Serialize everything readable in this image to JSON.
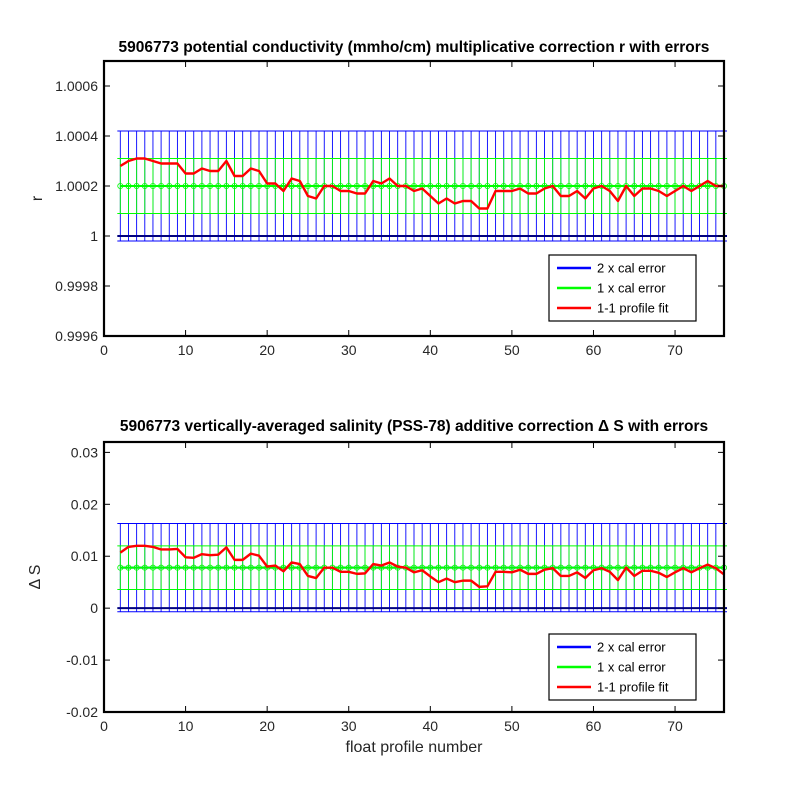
{
  "chart_data": [
    {
      "type": "line",
      "title": "5906773 potential conductivity (mmho/cm) multiplicative correction r with errors",
      "xlabel": "",
      "ylabel": "r",
      "xlim": [
        0,
        76
      ],
      "ylim": [
        0.9996,
        1.0007
      ],
      "xticks": [
        0,
        10,
        20,
        30,
        40,
        50,
        60,
        70
      ],
      "xtick_labels": [
        "0",
        "10",
        "20",
        "30",
        "40",
        "50",
        "60",
        "70"
      ],
      "yticks": [
        0.9996,
        0.9998,
        1.0,
        1.0002,
        1.0004,
        1.0006
      ],
      "ytick_labels": [
        "0.9996",
        "0.9998",
        "1",
        "1.0002",
        "1.0004",
        "1.0006"
      ],
      "grid": false,
      "legend_position": "bottom-right",
      "colors": {
        "two_cal": "#0000ff",
        "one_cal": "#00ff00",
        "profile_fit": "#ff0000"
      },
      "series": [
        {
          "name": "2 x cal error",
          "center": 1.0002,
          "half_width": 0.00022,
          "x_start": 2,
          "x_end": 76
        },
        {
          "name": "1 x cal error",
          "center": 1.0002,
          "half_width": 0.00011,
          "x_start": 2,
          "x_end": 76
        },
        {
          "name": "1-1 profile fit",
          "x": [
            2,
            3,
            4,
            5,
            6,
            7,
            8,
            9,
            10,
            11,
            12,
            13,
            14,
            15,
            16,
            17,
            18,
            19,
            20,
            21,
            22,
            23,
            24,
            25,
            26,
            27,
            28,
            29,
            30,
            31,
            32,
            33,
            34,
            35,
            36,
            37,
            38,
            39,
            40,
            41,
            42,
            43,
            44,
            45,
            46,
            47,
            48,
            49,
            50,
            51,
            52,
            53,
            54,
            55,
            56,
            57,
            58,
            59,
            60,
            61,
            62,
            63,
            64,
            65,
            66,
            67,
            68,
            69,
            70,
            71,
            72,
            73,
            74,
            75,
            76
          ],
          "values": [
            1.00028,
            1.0003,
            1.00031,
            1.00031,
            1.0003,
            1.00029,
            1.00029,
            1.00029,
            1.00025,
            1.00025,
            1.00027,
            1.00026,
            1.00026,
            1.0003,
            1.00024,
            1.00024,
            1.00027,
            1.00026,
            1.00021,
            1.00021,
            1.00018,
            1.00023,
            1.00022,
            1.00016,
            1.00015,
            1.0002,
            1.0002,
            1.00018,
            1.00018,
            1.00017,
            1.00017,
            1.00022,
            1.00021,
            1.00023,
            1.0002,
            1.0002,
            1.00018,
            1.00019,
            1.00016,
            1.00013,
            1.00015,
            1.00013,
            1.00014,
            1.00014,
            1.00011,
            1.00011,
            1.00018,
            1.00018,
            1.00018,
            1.00019,
            1.00017,
            1.00017,
            1.00019,
            1.0002,
            1.00016,
            1.00016,
            1.00018,
            1.00015,
            1.00019,
            1.0002,
            1.00018,
            1.00014,
            1.0002,
            1.00016,
            1.00019,
            1.00019,
            1.00018,
            1.00016,
            1.00018,
            1.0002,
            1.00018,
            1.0002,
            1.00022,
            1.0002,
            1.0002
          ]
        }
      ]
    },
    {
      "type": "line",
      "title": "5906773 vertically-averaged salinity (PSS-78) additive correction Δ S with errors",
      "xlabel": "float profile number",
      "ylabel": "Δ S",
      "xlim": [
        0,
        76
      ],
      "ylim": [
        -0.02,
        0.032
      ],
      "xticks": [
        0,
        10,
        20,
        30,
        40,
        50,
        60,
        70
      ],
      "xtick_labels": [
        "0",
        "10",
        "20",
        "30",
        "40",
        "50",
        "60",
        "70"
      ],
      "yticks": [
        -0.02,
        -0.01,
        0,
        0.01,
        0.02,
        0.03
      ],
      "ytick_labels": [
        "-0.02",
        "-0.01",
        "0",
        "0.01",
        "0.02",
        "0.03"
      ],
      "grid": false,
      "legend_position": "bottom-right",
      "colors": {
        "two_cal": "#0000ff",
        "one_cal": "#00ff00",
        "profile_fit": "#ff0000"
      },
      "series": [
        {
          "name": "2 x cal error",
          "center": 0.0078,
          "half_width": 0.0085,
          "x_start": 2,
          "x_end": 76
        },
        {
          "name": "1 x cal error",
          "center": 0.0078,
          "half_width": 0.0042,
          "x_start": 2,
          "x_end": 76
        },
        {
          "name": "1-1 profile fit",
          "x": [
            2,
            3,
            4,
            5,
            6,
            7,
            8,
            9,
            10,
            11,
            12,
            13,
            14,
            15,
            16,
            17,
            18,
            19,
            20,
            21,
            22,
            23,
            24,
            25,
            26,
            27,
            28,
            29,
            30,
            31,
            32,
            33,
            34,
            35,
            36,
            37,
            38,
            39,
            40,
            41,
            42,
            43,
            44,
            45,
            46,
            47,
            48,
            49,
            50,
            51,
            52,
            53,
            54,
            55,
            56,
            57,
            58,
            59,
            60,
            61,
            62,
            63,
            64,
            65,
            66,
            67,
            68,
            69,
            70,
            71,
            72,
            73,
            74,
            75,
            76
          ],
          "values": [
            0.0107,
            0.0118,
            0.012,
            0.012,
            0.0118,
            0.0113,
            0.0113,
            0.0114,
            0.0098,
            0.0097,
            0.0104,
            0.0102,
            0.0103,
            0.0117,
            0.0093,
            0.0093,
            0.0105,
            0.0101,
            0.008,
            0.0082,
            0.0071,
            0.0088,
            0.0085,
            0.0062,
            0.0058,
            0.0078,
            0.0078,
            0.007,
            0.007,
            0.0066,
            0.0067,
            0.0085,
            0.0082,
            0.0088,
            0.008,
            0.0078,
            0.0069,
            0.0073,
            0.0061,
            0.005,
            0.0057,
            0.005,
            0.0053,
            0.0053,
            0.0041,
            0.0042,
            0.007,
            0.007,
            0.0069,
            0.0074,
            0.0066,
            0.0066,
            0.0074,
            0.0077,
            0.0062,
            0.0062,
            0.0069,
            0.0058,
            0.0073,
            0.0077,
            0.007,
            0.0054,
            0.0078,
            0.0062,
            0.0072,
            0.0072,
            0.0068,
            0.006,
            0.0069,
            0.0077,
            0.0069,
            0.0077,
            0.0084,
            0.0077,
            0.0065
          ]
        }
      ]
    }
  ]
}
